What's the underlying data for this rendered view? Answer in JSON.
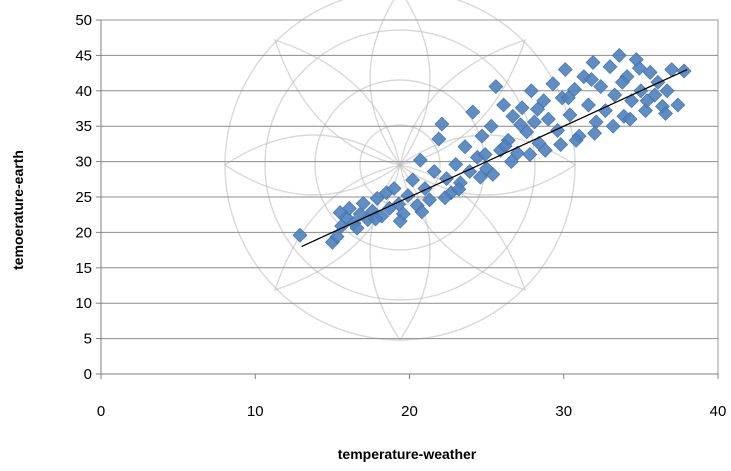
{
  "chart_data": {
    "type": "scatter",
    "xlabel": "temperature-weather",
    "ylabel": "temoerature-earth",
    "xlim": [
      0,
      40
    ],
    "ylim": [
      0,
      50
    ],
    "x_ticks": [
      0,
      10,
      20,
      30,
      40
    ],
    "y_ticks": [
      0,
      5,
      10,
      15,
      20,
      25,
      30,
      35,
      40,
      45,
      50
    ],
    "grid": "horizontal",
    "marker_color": "#4f81bd",
    "trendline": {
      "color": "#000000",
      "from": [
        13,
        18
      ],
      "to": [
        38,
        43
      ]
    },
    "series": [
      {
        "points": [
          [
            12.9,
            19.6
          ],
          [
            15.0,
            18.6
          ],
          [
            15.3,
            19.4
          ],
          [
            15.6,
            20.9
          ],
          [
            15.9,
            22.1
          ],
          [
            16.1,
            23.4
          ],
          [
            16.4,
            21.3
          ],
          [
            16.8,
            22.6
          ],
          [
            17.0,
            24.1
          ],
          [
            17.3,
            21.8
          ],
          [
            17.6,
            23.0
          ],
          [
            17.9,
            24.8
          ],
          [
            18.2,
            22.3
          ],
          [
            18.5,
            25.6
          ],
          [
            18.7,
            23.4
          ],
          [
            19.0,
            26.2
          ],
          [
            19.3,
            24.0
          ],
          [
            19.6,
            22.6
          ],
          [
            19.9,
            25.2
          ],
          [
            20.2,
            27.4
          ],
          [
            20.5,
            23.8
          ],
          [
            20.7,
            30.2
          ],
          [
            21.0,
            26.2
          ],
          [
            21.3,
            24.6
          ],
          [
            21.6,
            28.6
          ],
          [
            21.9,
            33.2
          ],
          [
            22.1,
            35.3
          ],
          [
            22.4,
            27.6
          ],
          [
            22.7,
            25.6
          ],
          [
            23.0,
            29.6
          ],
          [
            23.3,
            27.0
          ],
          [
            23.6,
            32.1
          ],
          [
            23.9,
            28.6
          ],
          [
            24.1,
            37.0
          ],
          [
            24.4,
            30.6
          ],
          [
            24.7,
            33.6
          ],
          [
            25.0,
            29.0
          ],
          [
            25.3,
            35.0
          ],
          [
            25.6,
            40.6
          ],
          [
            25.9,
            31.6
          ],
          [
            26.1,
            38.0
          ],
          [
            26.4,
            33.0
          ],
          [
            26.7,
            36.4
          ],
          [
            27.0,
            31.2
          ],
          [
            27.3,
            37.6
          ],
          [
            27.6,
            34.2
          ],
          [
            27.9,
            40.0
          ],
          [
            28.1,
            35.6
          ],
          [
            28.4,
            32.6
          ],
          [
            28.7,
            38.6
          ],
          [
            29.0,
            36.0
          ],
          [
            29.3,
            41.0
          ],
          [
            29.6,
            34.4
          ],
          [
            29.9,
            39.0
          ],
          [
            30.1,
            43.0
          ],
          [
            30.4,
            36.6
          ],
          [
            30.7,
            40.2
          ],
          [
            31.0,
            33.6
          ],
          [
            31.3,
            42.0
          ],
          [
            31.6,
            38.0
          ],
          [
            31.9,
            44.0
          ],
          [
            32.1,
            35.6
          ],
          [
            32.4,
            40.6
          ],
          [
            32.7,
            37.2
          ],
          [
            33.0,
            43.4
          ],
          [
            33.3,
            39.4
          ],
          [
            33.6,
            45.0
          ],
          [
            33.9,
            36.4
          ],
          [
            34.1,
            42.0
          ],
          [
            34.4,
            38.6
          ],
          [
            34.7,
            44.4
          ],
          [
            35.0,
            40.0
          ],
          [
            35.3,
            37.2
          ],
          [
            35.6,
            42.6
          ],
          [
            35.9,
            39.4
          ],
          [
            36.1,
            41.2
          ],
          [
            36.4,
            37.8
          ],
          [
            36.7,
            40.0
          ],
          [
            37.0,
            43.0
          ],
          [
            37.4,
            38.0
          ],
          [
            37.8,
            42.8
          ],
          [
            15.5,
            22.8
          ],
          [
            16.6,
            20.6
          ],
          [
            17.8,
            21.9
          ],
          [
            19.4,
            21.6
          ],
          [
            20.8,
            22.9
          ],
          [
            22.3,
            24.9
          ],
          [
            23.2,
            26.1
          ],
          [
            24.6,
            27.8
          ],
          [
            25.4,
            28.2
          ],
          [
            26.6,
            30.0
          ],
          [
            27.8,
            31.0
          ],
          [
            28.8,
            31.6
          ],
          [
            29.8,
            32.4
          ],
          [
            30.8,
            33.0
          ],
          [
            32.0,
            34.0
          ],
          [
            33.2,
            35.0
          ],
          [
            34.3,
            36.0
          ],
          [
            35.4,
            38.6
          ],
          [
            36.6,
            36.8
          ],
          [
            30.3,
            39.0
          ],
          [
            31.8,
            41.6
          ],
          [
            33.8,
            41.2
          ],
          [
            34.9,
            43.2
          ],
          [
            28.3,
            37.4
          ],
          [
            27.2,
            35.2
          ],
          [
            26.2,
            32.2
          ],
          [
            24.9,
            31.0
          ]
        ]
      }
    ]
  }
}
